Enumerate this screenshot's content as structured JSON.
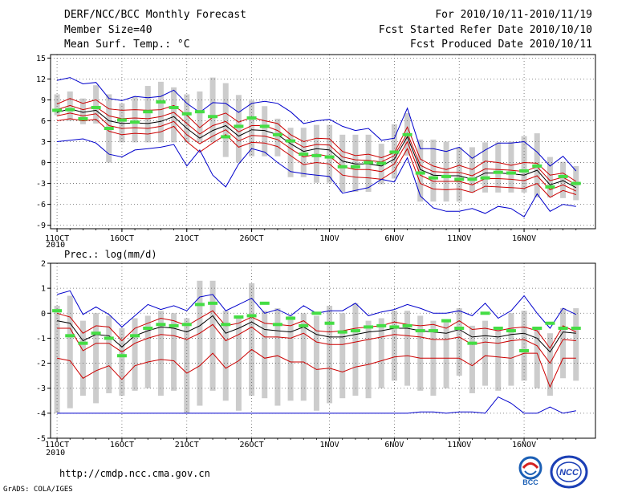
{
  "header": {
    "left": [
      "DERF/NCC/BCC Monthly Forecast",
      "Member Size=40",
      "Mean Surf. Temp.: °C"
    ],
    "right": [
      "For 2010/10/11-2010/11/19",
      "Fcst Started Refer Date 2010/10/10",
      "Fcst Produced Date 2010/10/11"
    ]
  },
  "footer": {
    "url": "http://cmdp.ncc.cma.gov.cn",
    "credit": "GrADS: COLA/IGES"
  },
  "logos": {
    "bcc": "BCC",
    "ncc": "NCC"
  },
  "colors": {
    "ensemble_max_min": "#0000cc",
    "percentile_lines": "#cc0000",
    "mean_line": "#000000",
    "spread_bar": "#cccccc",
    "observation": "#44dd44"
  },
  "chart_data": [
    {
      "type": "line",
      "title": "Mean Surf. Temp.: °C",
      "x_ticks": [
        "11OCT",
        "16OCT",
        "21OCT",
        "26OCT",
        "1NOV",
        "6NOV",
        "11NOV",
        "16NOV"
      ],
      "x_tick_days": [
        1,
        6,
        11,
        16,
        22,
        27,
        32,
        37
      ],
      "x_year": "2010",
      "ylim": [
        -9.5,
        15.5
      ],
      "y_ticks": [
        15,
        12,
        9,
        6,
        3,
        0,
        -3,
        -6,
        -9
      ],
      "series": [
        {
          "name": "max",
          "values": [
            11.8,
            12.2,
            11.3,
            11.5,
            9.2,
            8.9,
            9.5,
            9.3,
            9.5,
            10.4,
            8.5,
            7.2,
            8.6,
            8.5,
            7.2,
            8.5,
            8.8,
            8.5,
            7.3,
            5.6,
            6.0,
            6.2,
            5.2,
            4.6,
            4.9,
            3.2,
            3.5,
            7.8,
            2.0,
            2.0,
            1.6,
            2.2,
            0.6,
            1.8,
            2.8,
            2.8,
            3.0,
            1.5,
            -0.5,
            0.9,
            -1.2
          ]
        },
        {
          "name": "p90",
          "values": [
            8.4,
            9.2,
            8.5,
            9.0,
            7.7,
            7.5,
            7.6,
            7.5,
            7.6,
            8.2,
            6.8,
            5.0,
            6.5,
            7.1,
            5.8,
            6.5,
            6.0,
            5.6,
            4.0,
            3.0,
            3.5,
            3.4,
            1.6,
            1.0,
            1.2,
            0.7,
            1.4,
            5.1,
            0.5,
            -0.5,
            -1.0,
            -0.4,
            -1.0,
            0.2,
            0.0,
            -0.4,
            0.0,
            -0.1,
            -1.8,
            -1.5,
            -2.7
          ]
        },
        {
          "name": "p75",
          "values": [
            7.6,
            8.2,
            7.6,
            8.0,
            6.7,
            6.3,
            6.4,
            6.3,
            6.6,
            7.2,
            5.6,
            4.1,
            5.3,
            5.9,
            4.4,
            5.3,
            5.3,
            4.6,
            3.3,
            2.2,
            2.6,
            2.5,
            0.8,
            0.4,
            0.3,
            0.1,
            1.0,
            4.2,
            -0.4,
            -1.3,
            -1.4,
            -1.4,
            -1.9,
            -0.9,
            -1.0,
            -1.1,
            -1.3,
            -0.6,
            -2.6,
            -2.1,
            -3.2
          ]
        },
        {
          "name": "mean",
          "values": [
            7.2,
            7.7,
            7.2,
            7.5,
            6.0,
            5.6,
            5.7,
            5.6,
            5.9,
            6.6,
            4.9,
            3.5,
            4.6,
            5.3,
            3.8,
            4.7,
            4.6,
            4.0,
            2.7,
            1.6,
            2.0,
            1.8,
            0.2,
            -0.2,
            -0.2,
            -0.5,
            0.5,
            3.7,
            -1.0,
            -1.8,
            -1.9,
            -1.9,
            -2.4,
            -1.5,
            -1.5,
            -1.6,
            -1.8,
            -1.1,
            -3.2,
            -2.6,
            -3.6
          ]
        },
        {
          "name": "p25",
          "values": [
            6.7,
            7.1,
            6.7,
            7.0,
            5.3,
            4.9,
            5.0,
            4.9,
            5.2,
            5.9,
            4.0,
            2.7,
            3.8,
            4.7,
            3.1,
            3.9,
            3.8,
            3.3,
            2.0,
            0.8,
            1.2,
            0.9,
            -0.6,
            -1.0,
            -1.0,
            -1.3,
            -0.2,
            3.0,
            -1.8,
            -2.7,
            -2.7,
            -2.7,
            -3.2,
            -2.3,
            -2.3,
            -2.4,
            -2.6,
            -1.9,
            -3.9,
            -3.2,
            -4.1
          ]
        },
        {
          "name": "p10",
          "values": [
            6.0,
            6.3,
            6.0,
            6.2,
            4.5,
            4.0,
            4.2,
            4.1,
            4.4,
            5.2,
            3.0,
            1.5,
            2.8,
            4.0,
            2.2,
            2.9,
            2.8,
            2.3,
            1.0,
            -0.3,
            0.0,
            -0.2,
            -1.8,
            -2.1,
            -2.2,
            -2.4,
            -1.2,
            2.0,
            -3.0,
            -3.8,
            -3.9,
            -3.8,
            -4.3,
            -3.4,
            -3.5,
            -3.6,
            -3.7,
            -3.0,
            -5.0,
            -4.0,
            -4.6
          ]
        },
        {
          "name": "min",
          "values": [
            3.0,
            3.2,
            3.4,
            2.8,
            1.2,
            0.8,
            1.8,
            2.0,
            2.2,
            2.6,
            -0.5,
            1.8,
            -1.8,
            -3.5,
            -0.2,
            2.0,
            1.5,
            0.0,
            -1.3,
            -1.6,
            -1.8,
            -2.0,
            -4.4,
            -4.0,
            -3.6,
            -2.4,
            -2.8,
            0.7,
            -4.8,
            -6.5,
            -7.0,
            -7.0,
            -6.6,
            -7.3,
            -6.3,
            -6.6,
            -7.8,
            -4.5,
            -7.0,
            -6.0,
            -6.3
          ]
        }
      ],
      "spread_bars": [
        [
          6.8,
          9.8
        ],
        [
          6.0,
          10.2
        ],
        [
          5.5,
          9.2
        ],
        [
          5.6,
          11.1
        ],
        [
          0,
          9.8
        ],
        [
          2.9,
          8.5
        ],
        [
          2.9,
          9.5
        ],
        [
          2.9,
          11.0
        ],
        [
          2.9,
          11.6
        ],
        [
          2.9,
          10.8
        ],
        [
          2.9,
          9.8
        ],
        [
          2.9,
          10.2
        ],
        [
          2.9,
          12.2
        ],
        [
          0.8,
          11.4
        ],
        [
          0,
          9.7
        ],
        [
          0.9,
          8.9
        ],
        [
          0.9,
          8.1
        ],
        [
          0.9,
          6.3
        ],
        [
          -2.1,
          5.0
        ],
        [
          -2.1,
          5.0
        ],
        [
          -2.9,
          5.4
        ],
        [
          -2.9,
          5.4
        ],
        [
          -4.2,
          4.0
        ],
        [
          -4.2,
          4.0
        ],
        [
          -4.2,
          4.0
        ],
        [
          -3.1,
          2.7
        ],
        [
          -2.3,
          5.5
        ],
        [
          1.0,
          7.1
        ],
        [
          -5.6,
          3.3
        ],
        [
          -5.6,
          3.3
        ],
        [
          -5.6,
          3.0
        ],
        [
          -5.6,
          2.2
        ],
        [
          -4.3,
          2.2
        ],
        [
          -4.3,
          2.9
        ],
        [
          -4.3,
          2.9
        ],
        [
          -4.3,
          3.0
        ],
        [
          -4.3,
          3.8
        ],
        [
          -5.0,
          4.2
        ],
        [
          -5.0,
          0.8
        ],
        [
          -5.1,
          0.1
        ],
        [
          -5.4,
          -0.5
        ]
      ],
      "observations": [
        7.5,
        7.6,
        6.3,
        7.9,
        4.9,
        6.1,
        5.8,
        7.3,
        8.7,
        7.9,
        7.0,
        7.3,
        6.6,
        3.7,
        5.2,
        6.4,
        5.2,
        4.0,
        3.1,
        1.2,
        1.0,
        0.8,
        -0.6,
        -0.6,
        0.0,
        -0.1,
        1.5,
        4.0,
        -1.5,
        -2.2,
        -2.0,
        -2.4,
        -2.4,
        -2.2,
        -1.4,
        -1.5,
        -1.2,
        -0.5,
        -3.5,
        -2.0,
        -3.0
      ]
    },
    {
      "type": "line",
      "title": "Prec.: log(mm/d)",
      "x_ticks": [
        "11OCT",
        "16OCT",
        "21OCT",
        "26OCT",
        "1NOV",
        "6NOV",
        "11NOV",
        "16NOV"
      ],
      "x_tick_days": [
        1,
        6,
        11,
        16,
        22,
        27,
        32,
        37
      ],
      "x_year": "2010",
      "ylim": [
        -5,
        2
      ],
      "y_ticks": [
        2,
        1,
        0,
        -1,
        -2,
        -3,
        -4,
        -5
      ],
      "series": [
        {
          "name": "max",
          "values": [
            0.75,
            0.9,
            -0.05,
            0.25,
            -0.05,
            -0.55,
            -0.1,
            0.35,
            0.15,
            0.3,
            0.1,
            0.65,
            0.75,
            0.1,
            0.35,
            0.6,
            0.0,
            0.15,
            -0.1,
            0.3,
            0.0,
            0.1,
            0.1,
            0.4,
            -0.1,
            0.05,
            0.15,
            0.35,
            0.2,
            0.0,
            0.0,
            0.1,
            -0.1,
            0.4,
            -0.2,
            0.1,
            0.7,
            0.0,
            -0.6,
            0.2,
            -0.05
          ]
        },
        {
          "name": "p90",
          "values": [
            0.0,
            -0.15,
            -0.8,
            -0.5,
            -0.55,
            -1.1,
            -0.6,
            -0.4,
            -0.2,
            -0.3,
            -0.5,
            -0.2,
            0.1,
            -0.5,
            -0.4,
            -0.15,
            -0.4,
            -0.45,
            -0.5,
            -0.3,
            -0.7,
            -0.75,
            -0.7,
            -0.6,
            -0.55,
            -0.5,
            -0.35,
            -0.45,
            -0.5,
            -0.45,
            -0.6,
            -0.3,
            -0.65,
            -0.6,
            -0.7,
            -0.6,
            -0.55,
            -0.7,
            -1.4,
            -0.5,
            -0.75
          ]
        },
        {
          "name": "mean",
          "values": [
            -0.3,
            -0.4,
            -1.1,
            -0.85,
            -0.9,
            -1.35,
            -0.9,
            -0.7,
            -0.55,
            -0.6,
            -0.75,
            -0.5,
            -0.1,
            -0.8,
            -0.6,
            -0.35,
            -0.65,
            -0.7,
            -0.75,
            -0.55,
            -0.85,
            -0.95,
            -0.95,
            -0.85,
            -0.75,
            -0.7,
            -0.6,
            -0.6,
            -0.7,
            -0.75,
            -0.8,
            -0.65,
            -0.95,
            -0.9,
            -0.95,
            -0.85,
            -0.8,
            -1.0,
            -1.55,
            -0.75,
            -0.8
          ]
        },
        {
          "name": "p75",
          "values": [
            -0.6,
            -0.6,
            -1.5,
            -1.2,
            -1.2,
            -1.55,
            -1.2,
            -1.0,
            -0.85,
            -0.9,
            -1.05,
            -0.8,
            -0.45,
            -1.1,
            -0.85,
            -0.55,
            -0.95,
            -0.95,
            -1.0,
            -0.8,
            -1.15,
            -1.25,
            -1.25,
            -1.15,
            -1.05,
            -0.95,
            -0.85,
            -0.9,
            -0.95,
            -1.05,
            -1.05,
            -0.95,
            -1.25,
            -1.15,
            -1.2,
            -1.1,
            -1.05,
            -1.3,
            -2.0,
            -1.05,
            -1.1
          ]
        },
        {
          "name": "p25",
          "values": [
            -1.8,
            -1.9,
            -2.6,
            -2.3,
            -2.1,
            -2.65,
            -2.1,
            -1.95,
            -1.85,
            -1.9,
            -2.4,
            -2.1,
            -1.6,
            -2.2,
            -1.9,
            -1.45,
            -1.8,
            -1.7,
            -1.95,
            -1.95,
            -2.25,
            -2.2,
            -2.35,
            -2.15,
            -2.05,
            -1.9,
            -1.75,
            -1.7,
            -1.8,
            -1.8,
            -1.8,
            -1.8,
            -2.1,
            -1.7,
            -1.75,
            -1.8,
            -1.6,
            -1.6,
            -2.95,
            -1.8,
            -1.8
          ]
        },
        {
          "name": "min",
          "values": [
            -4,
            -4,
            -4,
            -4,
            -4,
            -4,
            -4,
            -4,
            -4,
            -4,
            -4,
            -4,
            -4,
            -4,
            -4,
            -4,
            -4,
            -4,
            -4,
            -4,
            -4,
            -4,
            -4,
            -4,
            -4,
            -4,
            -4,
            -4,
            -3.95,
            -3.95,
            -4,
            -3.95,
            -3.95,
            -4,
            -3.35,
            -3.6,
            -4,
            -4,
            -3.75,
            -4,
            -3.9
          ]
        }
      ],
      "spread_bars": [
        [
          -4,
          0.3
        ],
        [
          -3.8,
          0.7
        ],
        [
          -3.3,
          -0.3
        ],
        [
          -3.6,
          0.0
        ],
        [
          -3.2,
          -0.1
        ],
        [
          -3.3,
          -0.6
        ],
        [
          -3.1,
          -0.2
        ],
        [
          -3.0,
          -0.1
        ],
        [
          -3.3,
          0.1
        ],
        [
          -3.1,
          0.0
        ],
        [
          -4.0,
          -0.2
        ],
        [
          -3.7,
          1.3
        ],
        [
          -3.1,
          1.3
        ],
        [
          -3.5,
          0.1
        ],
        [
          -3.9,
          -0.1
        ],
        [
          -3.3,
          1.2
        ],
        [
          -3.4,
          0.1
        ],
        [
          -3.7,
          0.2
        ],
        [
          -3.5,
          -0.1
        ],
        [
          -3.5,
          0.0
        ],
        [
          -3.9,
          -0.1
        ],
        [
          -3.6,
          0.3
        ],
        [
          -3.4,
          0.0
        ],
        [
          -3.3,
          0.4
        ],
        [
          -3.4,
          -0.3
        ],
        [
          -3.0,
          -0.2
        ],
        [
          -2.7,
          0.1
        ],
        [
          -2.9,
          0.1
        ],
        [
          -3.1,
          -0.1
        ],
        [
          -3.3,
          -0.3
        ],
        [
          -3.0,
          -0.3
        ],
        [
          -2.5,
          0.2
        ],
        [
          -3.2,
          -0.5
        ],
        [
          -2.9,
          -0.3
        ],
        [
          -3.1,
          -0.6
        ],
        [
          -2.9,
          0.0
        ],
        [
          -2.7,
          0.1
        ],
        [
          -3.0,
          -0.6
        ],
        [
          -3.3,
          -0.8
        ],
        [
          -2.6,
          0.2
        ],
        [
          -2.7,
          0.2
        ]
      ],
      "observations": [
        0.1,
        -0.9,
        -1.2,
        -0.8,
        -1.0,
        -1.7,
        -0.9,
        -0.6,
        -0.45,
        -0.5,
        -0.45,
        0.35,
        0.4,
        -0.45,
        -0.15,
        -0.1,
        0.4,
        -0.45,
        -0.2,
        -0.5,
        0.0,
        -0.4,
        -0.75,
        -0.7,
        -0.55,
        -0.5,
        -0.55,
        -0.5,
        -0.7,
        -0.7,
        -0.3,
        -0.6,
        -1.2,
        0.0,
        -0.6,
        -0.7,
        -1.5,
        -0.6,
        -0.4,
        -0.6,
        -0.6
      ]
    }
  ]
}
